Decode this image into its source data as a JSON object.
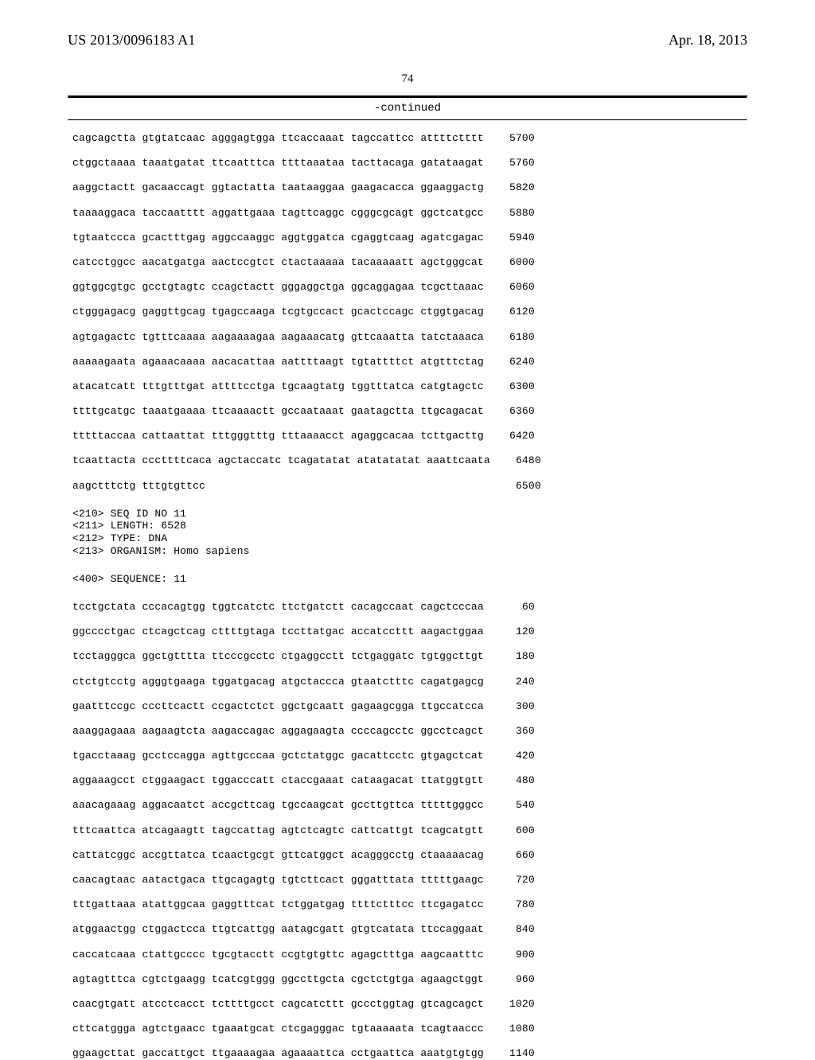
{
  "header": {
    "pub_number": "US 2013/0096183 A1",
    "pub_date": "Apr. 18, 2013",
    "page_number": "74",
    "continued_label": "-continued"
  },
  "block1": [
    {
      "seq": "cagcagctta gtgtatcaac agggagtgga ttcaccaaat tagccattcc attttctttt",
      "num": "5700"
    },
    {
      "seq": "ctggctaaaa taaatgatat ttcaatttca ttttaaataa tacttacaga gatataagat",
      "num": "5760"
    },
    {
      "seq": "aaggctactt gacaaccagt ggtactatta taataaggaa gaagacacca ggaaggactg",
      "num": "5820"
    },
    {
      "seq": "taaaaggaca taccaatttt aggattgaaa tagttcaggc cgggcgcagt ggctcatgcc",
      "num": "5880"
    },
    {
      "seq": "tgtaatccca gcactttgag aggccaaggc aggtggatca cgaggtcaag agatcgagac",
      "num": "5940"
    },
    {
      "seq": "catcctggcc aacatgatga aactccgtct ctactaaaaa tacaaaaatt agctgggcat",
      "num": "6000"
    },
    {
      "seq": "ggtggcgtgc gcctgtagtc ccagctactt gggaggctga ggcaggagaa tcgcttaaac",
      "num": "6060"
    },
    {
      "seq": "ctgggagacg gaggttgcag tgagccaaga tcgtgccact gcactccagc ctggtgacag",
      "num": "6120"
    },
    {
      "seq": "agtgagactc tgtttcaaaa aagaaaagaa aagaaacatg gttcaaatta tatctaaaca",
      "num": "6180"
    },
    {
      "seq": "aaaaagaata agaaacaaaa aacacattaa aattttaagt tgtattttct atgtttctag",
      "num": "6240"
    },
    {
      "seq": "atacatcatt tttgtttgat attttcctga tgcaagtatg tggtttatca catgtagctc",
      "num": "6300"
    },
    {
      "seq": "ttttgcatgc taaatgaaaa ttcaaaactt gccaataaat gaatagctta ttgcagacat",
      "num": "6360"
    },
    {
      "seq": "tttttaccaa cattaattat tttgggtttg tttaaaacct agaggcacaa tcttgacttg",
      "num": "6420"
    },
    {
      "seq": "tcaattacta cccttttcaca agctaccatc tcagatatat atatatatat aaattcaata",
      "num": "6480"
    },
    {
      "seq": "aagctttctg tttgtgttcc                                             ",
      "num": "6500"
    }
  ],
  "meta": [
    "<210> SEQ ID NO 11",
    "<211> LENGTH: 6528",
    "<212> TYPE: DNA",
    "<213> ORGANISM: Homo sapiens"
  ],
  "seq_header": "<400> SEQUENCE: 11",
  "block2": [
    {
      "seq": "tcctgctata cccacagtgg tggtcatctc ttctgatctt cacagccaat cagctcccaa",
      "num": "60"
    },
    {
      "seq": "ggcccctgac ctcagctcag cttttgtaga tccttatgac accatccttt aagactggaa",
      "num": "120"
    },
    {
      "seq": "tcctagggca ggctgtttta ttcccgcctc ctgaggcctt tctgaggatc tgtggcttgt",
      "num": "180"
    },
    {
      "seq": "ctctgtcctg agggtgaaga tggatgacag atgctaccca gtaatctttc cagatgagcg",
      "num": "240"
    },
    {
      "seq": "gaatttccgc cccttcactt ccgactctct ggctgcaatt gagaagcgga ttgccatcca",
      "num": "300"
    },
    {
      "seq": "aaaggagaaa aagaagtcta aagaccagac aggagaagta ccccagcctc ggcctcagct",
      "num": "360"
    },
    {
      "seq": "tgacctaaag gcctccagga agttgcccaa gctctatggc gacattcctc gtgagctcat",
      "num": "420"
    },
    {
      "seq": "aggaaagcct ctggaagact tggacccatt ctaccgaaat cataagacat ttatggtgtt",
      "num": "480"
    },
    {
      "seq": "aaacagaaag aggacaatct accgcttcag tgccaagcat gccttgttca tttttgggcc",
      "num": "540"
    },
    {
      "seq": "tttcaattca atcagaagtt tagccattag agtctcagtc cattcattgt tcagcatgtt",
      "num": "600"
    },
    {
      "seq": "cattatcggc accgttatca tcaactgcgt gttcatggct acagggcctg ctaaaaacag",
      "num": "660"
    },
    {
      "seq": "caacagtaac aatactgaca ttgcagagtg tgtcttcact gggatttata tttttgaagc",
      "num": "720"
    },
    {
      "seq": "tttgattaaa atattggcaa gaggtttcat tctggatgag ttttctttcc ttcgagatcc",
      "num": "780"
    },
    {
      "seq": "atggaactgg ctggactcca ttgtcattgg aatagcgatt gtgtcatata ttccaggaat",
      "num": "840"
    },
    {
      "seq": "caccatcaaa ctattgcccc tgcgtacctt ccgtgtgttc agagctttga aagcaatttc",
      "num": "900"
    },
    {
      "seq": "agtagtttca cgtctgaagg tcatcgtggg ggccttgcta cgctctgtga agaagctggt",
      "num": "960"
    },
    {
      "seq": "caacgtgatt atcctcacct tcttttgcct cagcatcttt gccctggtag gtcagcagct",
      "num": "1020"
    },
    {
      "seq": "cttcatggga agtctgaacc tgaaatgcat ctcgagggac tgtaaaaata tcagtaaccc",
      "num": "1080"
    },
    {
      "seq": "ggaagcttat gaccattgct ttgaaaagaa agaaaattca cctgaattca aaatgtgtgg",
      "num": "1140"
    }
  ]
}
